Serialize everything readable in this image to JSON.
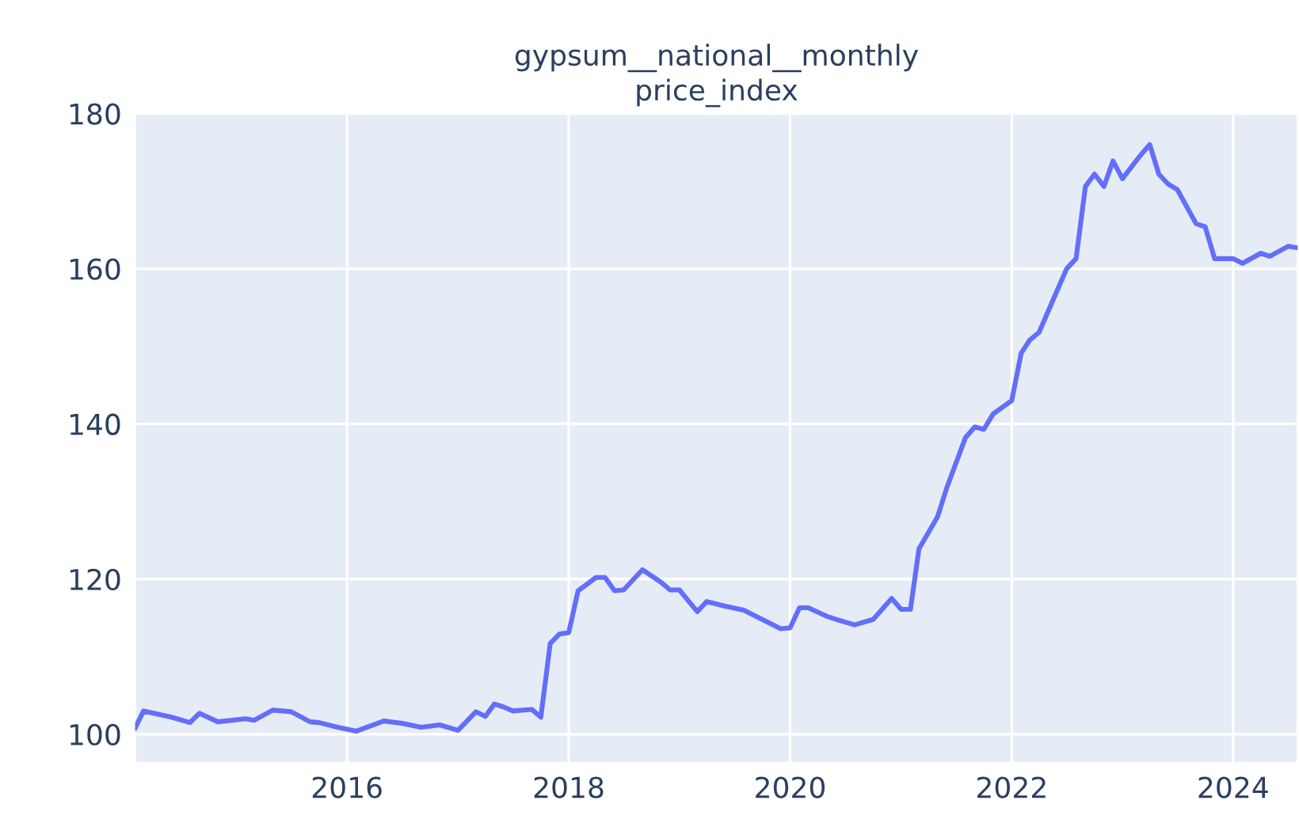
{
  "chart_data": {
    "type": "line",
    "title": "gypsum__national__monthly\nprice_index",
    "x": [
      "2014-02",
      "2014-03",
      "2014-06",
      "2014-08",
      "2014-09",
      "2014-11",
      "2015-02",
      "2015-03",
      "2015-05",
      "2015-07",
      "2015-09",
      "2015-10",
      "2015-12",
      "2016-02",
      "2016-05",
      "2016-07",
      "2016-09",
      "2016-11",
      "2017-01",
      "2017-03",
      "2017-04",
      "2017-05",
      "2017-06",
      "2017-07",
      "2017-09",
      "2017-10",
      "2017-11",
      "2017-12",
      "2018-01",
      "2018-02",
      "2018-04",
      "2018-05",
      "2018-06",
      "2018-07",
      "2018-09",
      "2018-11",
      "2018-12",
      "2019-01",
      "2019-03",
      "2019-04",
      "2019-06",
      "2019-08",
      "2019-10",
      "2019-12",
      "2020-01",
      "2020-02",
      "2020-03",
      "2020-05",
      "2020-06",
      "2020-08",
      "2020-10",
      "2020-12",
      "2021-01",
      "2021-02",
      "2021-03",
      "2021-05",
      "2021-06",
      "2021-08",
      "2021-09",
      "2021-10",
      "2021-11",
      "2022-01",
      "2022-02",
      "2022-03",
      "2022-04",
      "2022-06",
      "2022-07",
      "2022-08",
      "2022-09",
      "2022-10",
      "2022-11",
      "2022-12",
      "2023-01",
      "2023-03",
      "2023-04",
      "2023-05",
      "2023-06",
      "2023-07",
      "2023-09",
      "2023-10",
      "2023-11",
      "2024-01",
      "2024-02",
      "2024-04",
      "2024-05",
      "2024-07",
      "2024-08"
    ],
    "series": [
      {
        "color": "#636efa",
        "values": [
          100.8,
          103.0,
          102.2,
          101.5,
          102.7,
          101.6,
          102.0,
          101.8,
          103.1,
          102.9,
          101.6,
          101.5,
          100.9,
          100.4,
          101.7,
          101.4,
          100.9,
          101.2,
          100.5,
          102.9,
          102.3,
          103.9,
          103.5,
          103.0,
          103.2,
          102.2,
          111.7,
          112.9,
          113.1,
          118.5,
          120.2,
          120.2,
          118.5,
          118.6,
          121.2,
          119.6,
          118.6,
          118.6,
          115.8,
          117.1,
          116.5,
          116.0,
          114.8,
          113.6,
          113.7,
          116.3,
          116.3,
          115.2,
          114.8,
          114.1,
          114.8,
          117.5,
          116.1,
          116.1,
          123.9,
          128.0,
          131.8,
          138.2,
          139.6,
          139.3,
          141.3,
          143.0,
          149.1,
          150.8,
          151.8,
          157.3,
          160.0,
          161.3,
          170.6,
          172.2,
          170.6,
          173.9,
          171.6,
          174.6,
          176.0,
          172.2,
          170.9,
          170.2,
          165.8,
          165.4,
          161.3,
          161.3,
          160.7,
          162.0,
          161.6,
          162.9,
          162.7
        ]
      }
    ],
    "xlim": [
      "2014-02",
      "2024-08"
    ],
    "xticks": [
      {
        "value": "2016-01",
        "label": "2016"
      },
      {
        "value": "2018-01",
        "label": "2018"
      },
      {
        "value": "2020-01",
        "label": "2020"
      },
      {
        "value": "2022-01",
        "label": "2022"
      },
      {
        "value": "2024-01",
        "label": "2024"
      }
    ],
    "ylim": [
      96.3,
      180
    ],
    "yticks": [
      100,
      120,
      140,
      160,
      180
    ],
    "grid": true,
    "line_style": "solid",
    "marker": "none"
  }
}
